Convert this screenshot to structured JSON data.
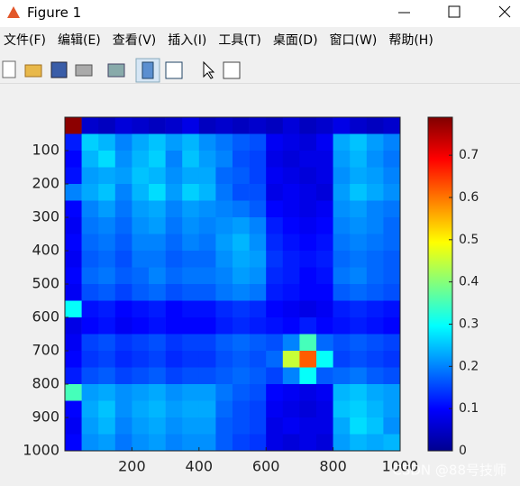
{
  "window": {
    "title": "Figure 1",
    "menu": [
      "文件(F)",
      "编辑(E)",
      "查看(V)",
      "插入(I)",
      "工具(T)",
      "桌面(D)",
      "窗口(W)",
      "帮助(H)"
    ],
    "watermark": "CSDN @88号技师"
  },
  "chart_data": {
    "type": "heatmap",
    "colormap": "jet",
    "y_reversed": true,
    "x": [
      25,
      75,
      125,
      175,
      225,
      275,
      325,
      375,
      425,
      475,
      525,
      575,
      625,
      675,
      725,
      775,
      825,
      875,
      925,
      975
    ],
    "y": [
      25,
      75,
      125,
      175,
      225,
      275,
      325,
      375,
      425,
      475,
      525,
      575,
      625,
      675,
      725,
      775,
      825,
      875,
      925,
      975
    ],
    "xlim": [
      0,
      1000
    ],
    "ylim": [
      0,
      1000
    ],
    "xticks": [
      200,
      400,
      600,
      800,
      1000
    ],
    "yticks": [
      100,
      200,
      300,
      400,
      500,
      600,
      700,
      800,
      900,
      1000
    ],
    "clim": [
      0,
      0.79
    ],
    "colorbar_ticks": [
      0,
      0.1,
      0.2,
      0.3,
      0.4,
      0.5,
      0.6,
      0.7
    ],
    "values": [
      [
        0.78,
        0.06,
        0.05,
        0.07,
        0.06,
        0.05,
        0.06,
        0.08,
        0.05,
        0.06,
        0.05,
        0.06,
        0.05,
        0.07,
        0.05,
        0.06,
        0.08,
        0.06,
        0.05,
        0.06
      ],
      [
        0.12,
        0.26,
        0.24,
        0.2,
        0.23,
        0.25,
        0.22,
        0.24,
        0.21,
        0.19,
        0.17,
        0.16,
        0.09,
        0.08,
        0.07,
        0.09,
        0.23,
        0.25,
        0.22,
        0.2
      ],
      [
        0.1,
        0.24,
        0.27,
        0.21,
        0.24,
        0.26,
        0.2,
        0.25,
        0.22,
        0.2,
        0.16,
        0.15,
        0.08,
        0.07,
        0.08,
        0.08,
        0.22,
        0.24,
        0.21,
        0.19
      ],
      [
        0.11,
        0.22,
        0.23,
        0.22,
        0.25,
        0.24,
        0.21,
        0.23,
        0.23,
        0.18,
        0.17,
        0.15,
        0.09,
        0.08,
        0.07,
        0.08,
        0.21,
        0.23,
        0.22,
        0.2
      ],
      [
        0.2,
        0.23,
        0.25,
        0.2,
        0.24,
        0.27,
        0.22,
        0.26,
        0.24,
        0.19,
        0.16,
        0.16,
        0.08,
        0.09,
        0.08,
        0.07,
        0.22,
        0.25,
        0.23,
        0.21
      ],
      [
        0.1,
        0.2,
        0.22,
        0.19,
        0.22,
        0.23,
        0.2,
        0.22,
        0.21,
        0.2,
        0.19,
        0.17,
        0.1,
        0.09,
        0.08,
        0.09,
        0.21,
        0.22,
        0.2,
        0.19
      ],
      [
        0.09,
        0.19,
        0.2,
        0.18,
        0.21,
        0.22,
        0.19,
        0.21,
        0.2,
        0.21,
        0.22,
        0.2,
        0.12,
        0.1,
        0.09,
        0.1,
        0.2,
        0.21,
        0.2,
        0.18
      ],
      [
        0.1,
        0.18,
        0.19,
        0.17,
        0.2,
        0.2,
        0.18,
        0.2,
        0.19,
        0.22,
        0.24,
        0.21,
        0.13,
        0.11,
        0.1,
        0.11,
        0.19,
        0.2,
        0.19,
        0.18
      ],
      [
        0.09,
        0.17,
        0.18,
        0.16,
        0.19,
        0.19,
        0.17,
        0.18,
        0.18,
        0.21,
        0.23,
        0.22,
        0.14,
        0.12,
        0.11,
        0.12,
        0.18,
        0.19,
        0.18,
        0.17
      ],
      [
        0.1,
        0.18,
        0.19,
        0.17,
        0.18,
        0.2,
        0.18,
        0.19,
        0.19,
        0.2,
        0.22,
        0.21,
        0.13,
        0.12,
        0.1,
        0.11,
        0.19,
        0.2,
        0.18,
        0.17
      ],
      [
        0.09,
        0.16,
        0.17,
        0.15,
        0.17,
        0.18,
        0.16,
        0.17,
        0.17,
        0.19,
        0.2,
        0.19,
        0.12,
        0.11,
        0.1,
        0.1,
        0.17,
        0.18,
        0.17,
        0.16
      ],
      [
        0.3,
        0.11,
        0.12,
        0.1,
        0.11,
        0.12,
        0.1,
        0.11,
        0.11,
        0.13,
        0.14,
        0.13,
        0.1,
        0.09,
        0.08,
        0.09,
        0.12,
        0.13,
        0.12,
        0.11
      ],
      [
        0.08,
        0.1,
        0.11,
        0.09,
        0.1,
        0.11,
        0.1,
        0.1,
        0.1,
        0.12,
        0.13,
        0.12,
        0.11,
        0.1,
        0.12,
        0.1,
        0.11,
        0.12,
        0.11,
        0.1
      ],
      [
        0.09,
        0.15,
        0.16,
        0.14,
        0.15,
        0.16,
        0.14,
        0.15,
        0.15,
        0.17,
        0.18,
        0.17,
        0.16,
        0.2,
        0.35,
        0.18,
        0.16,
        0.17,
        0.16,
        0.15
      ],
      [
        0.1,
        0.14,
        0.15,
        0.13,
        0.14,
        0.15,
        0.13,
        0.14,
        0.14,
        0.16,
        0.17,
        0.16,
        0.18,
        0.45,
        0.62,
        0.3,
        0.15,
        0.16,
        0.15,
        0.14
      ],
      [
        0.12,
        0.16,
        0.17,
        0.15,
        0.16,
        0.17,
        0.15,
        0.16,
        0.16,
        0.17,
        0.18,
        0.17,
        0.15,
        0.2,
        0.3,
        0.17,
        0.18,
        0.19,
        0.17,
        0.16
      ],
      [
        0.35,
        0.22,
        0.23,
        0.21,
        0.22,
        0.23,
        0.21,
        0.22,
        0.22,
        0.19,
        0.17,
        0.16,
        0.1,
        0.09,
        0.08,
        0.09,
        0.24,
        0.25,
        0.23,
        0.22
      ],
      [
        0.1,
        0.23,
        0.25,
        0.21,
        0.23,
        0.24,
        0.22,
        0.23,
        0.23,
        0.18,
        0.16,
        0.15,
        0.09,
        0.08,
        0.07,
        0.08,
        0.25,
        0.26,
        0.24,
        0.22
      ],
      [
        0.09,
        0.22,
        0.24,
        0.2,
        0.22,
        0.23,
        0.21,
        0.22,
        0.22,
        0.17,
        0.16,
        0.15,
        0.08,
        0.09,
        0.08,
        0.08,
        0.23,
        0.27,
        0.25,
        0.21
      ],
      [
        0.1,
        0.21,
        0.22,
        0.19,
        0.21,
        0.22,
        0.2,
        0.21,
        0.21,
        0.17,
        0.15,
        0.14,
        0.08,
        0.07,
        0.08,
        0.07,
        0.22,
        0.24,
        0.23,
        0.24
      ]
    ]
  }
}
